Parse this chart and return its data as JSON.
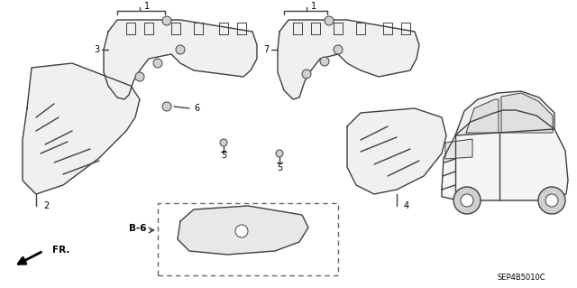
{
  "bg_color": "#ffffff",
  "line_color": "#404040",
  "label_color": "#000000",
  "diagram_code": "SEP4B5010C",
  "fr_label": "FR.",
  "figsize": [
    6.4,
    3.19
  ],
  "dpi": 100
}
